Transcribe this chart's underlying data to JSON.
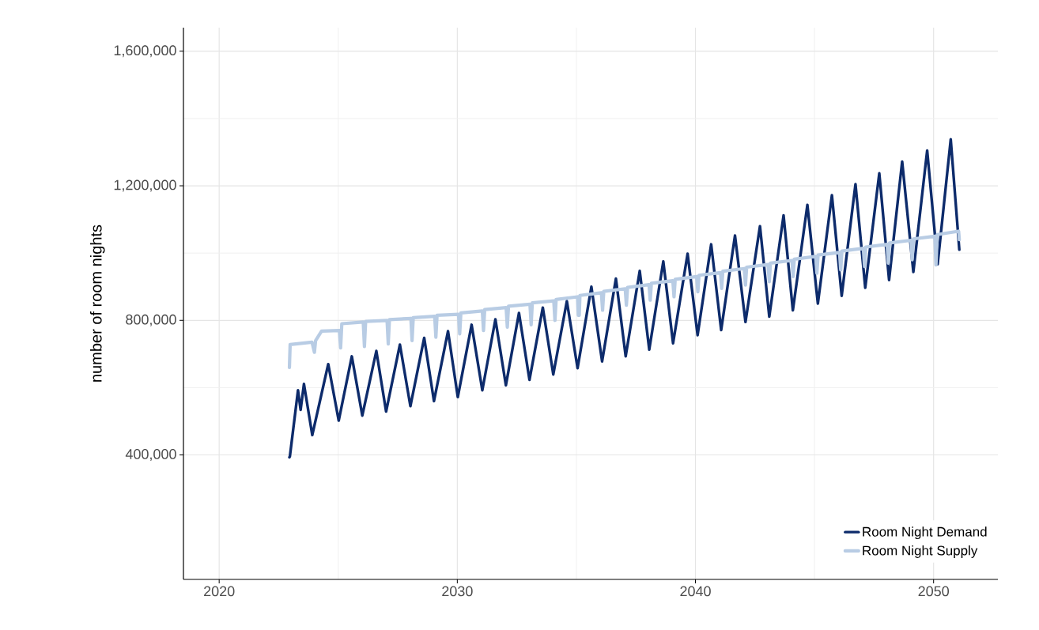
{
  "chart_data": {
    "type": "line",
    "ylabel": "number of room nights",
    "xlim": [
      2018.5,
      2052.7
    ],
    "ylim": [
      30000,
      1670000
    ],
    "xticks": [
      2020,
      2030,
      2040,
      2050
    ],
    "yticks": [
      {
        "value": 400000,
        "label": "400,000"
      },
      {
        "value": 800000,
        "label": "800,000"
      },
      {
        "value": 1200000,
        "label": "1,200,000"
      },
      {
        "value": 1600000,
        "label": "1,600,000"
      }
    ],
    "grid": true,
    "legend": "bottom right",
    "marker": "none",
    "line_style": "solid",
    "series": [
      {
        "name": "Room Night Demand",
        "color": "#0d2b6b",
        "x": [
          2022.95,
          2022.97,
          2023.31,
          2023.42,
          2023.56,
          2023.91,
          2024.58,
          2025.02,
          2025.57,
          2026.01,
          2026.6,
          2027.01,
          2027.59,
          2028.03,
          2028.61,
          2029.02,
          2029.61,
          2030.02,
          2030.6,
          2031.05,
          2031.6,
          2032.04,
          2032.59,
          2033.03,
          2033.59,
          2034.03,
          2034.6,
          2035.05,
          2035.63,
          2036.08,
          2036.66,
          2037.07,
          2037.66,
          2038.06,
          2038.65,
          2039.06,
          2039.67,
          2040.09,
          2040.66,
          2041.08,
          2041.66,
          2042.1,
          2042.71,
          2043.1,
          2043.7,
          2044.09,
          2044.7,
          2045.14,
          2045.73,
          2046.14,
          2046.72,
          2047.13,
          2047.72,
          2048.13,
          2048.68,
          2049.15,
          2049.73,
          2050.17,
          2050.72,
          2051.08
        ],
        "values": [
          393000,
          396000,
          592000,
          534000,
          611000,
          459000,
          670000,
          502000,
          693000,
          517000,
          709000,
          529000,
          728000,
          545000,
          748000,
          560000,
          768000,
          572000,
          787000,
          592000,
          803000,
          607000,
          822000,
          623000,
          838000,
          639000,
          857000,
          658000,
          900000,
          678000,
          924000,
          693000,
          947000,
          713000,
          975000,
          732000,
          998000,
          756000,
          1026000,
          771000,
          1052000,
          795000,
          1080000,
          811000,
          1112000,
          830000,
          1143000,
          850000,
          1172000,
          873000,
          1205000,
          897000,
          1237000,
          920000,
          1272000,
          944000,
          1305000,
          967000,
          1338000,
          1010000
        ]
      },
      {
        "name": "Room Night Supply",
        "color": "#b8cce4",
        "x": [
          2022.95,
          2022.98,
          2023.9,
          2024.0,
          2024.05,
          2024.3,
          2025.05,
          2025.1,
          2025.15,
          2026.05,
          2026.1,
          2026.15,
          2027.05,
          2027.1,
          2027.15,
          2028.05,
          2028.1,
          2028.15,
          2029.05,
          2029.1,
          2029.15,
          2030.05,
          2030.1,
          2030.15,
          2031.05,
          2031.1,
          2031.15,
          2032.05,
          2032.1,
          2032.15,
          2033.05,
          2033.1,
          2033.15,
          2034.05,
          2034.1,
          2034.15,
          2035.05,
          2035.08,
          2035.12,
          2035.15,
          2036.05,
          2036.1,
          2036.15,
          2037.05,
          2037.1,
          2037.15,
          2038.05,
          2038.1,
          2038.15,
          2039.05,
          2039.1,
          2039.15,
          2040.05,
          2040.1,
          2040.15,
          2041.05,
          2041.1,
          2041.15,
          2042.05,
          2042.1,
          2042.15,
          2043.05,
          2043.1,
          2043.15,
          2044.05,
          2044.1,
          2044.15,
          2045.05,
          2045.1,
          2045.15,
          2046.05,
          2046.1,
          2046.15,
          2047.05,
          2047.1,
          2047.15,
          2048.05,
          2048.1,
          2048.15,
          2049.05,
          2049.1,
          2049.15,
          2050.05,
          2050.1,
          2050.15,
          2051.05,
          2051.08
        ],
        "values": [
          660000,
          728000,
          735000,
          705000,
          740000,
          768000,
          770000,
          718000,
          790000,
          795000,
          722000,
          797000,
          800000,
          730000,
          802000,
          806000,
          740000,
          808000,
          812000,
          750000,
          815000,
          818000,
          760000,
          822000,
          828000,
          770000,
          832000,
          838000,
          780000,
          842000,
          848000,
          787000,
          852000,
          858000,
          800000,
          862000,
          870000,
          815000,
          815000,
          874000,
          882000,
          830000,
          886000,
          894000,
          845000,
          898000,
          906000,
          860000,
          910000,
          918000,
          870000,
          922000,
          930000,
          885000,
          934000,
          942000,
          895000,
          946000,
          954000,
          905000,
          958000,
          966000,
          915000,
          970000,
          978000,
          930000,
          982000,
          990000,
          940000,
          994000,
          1002000,
          950000,
          1006000,
          1014000,
          960000,
          1018000,
          1026000,
          970000,
          1030000,
          1038000,
          980000,
          1042000,
          1050000,
          965000,
          1055000,
          1065000,
          1040000
        ]
      }
    ]
  }
}
